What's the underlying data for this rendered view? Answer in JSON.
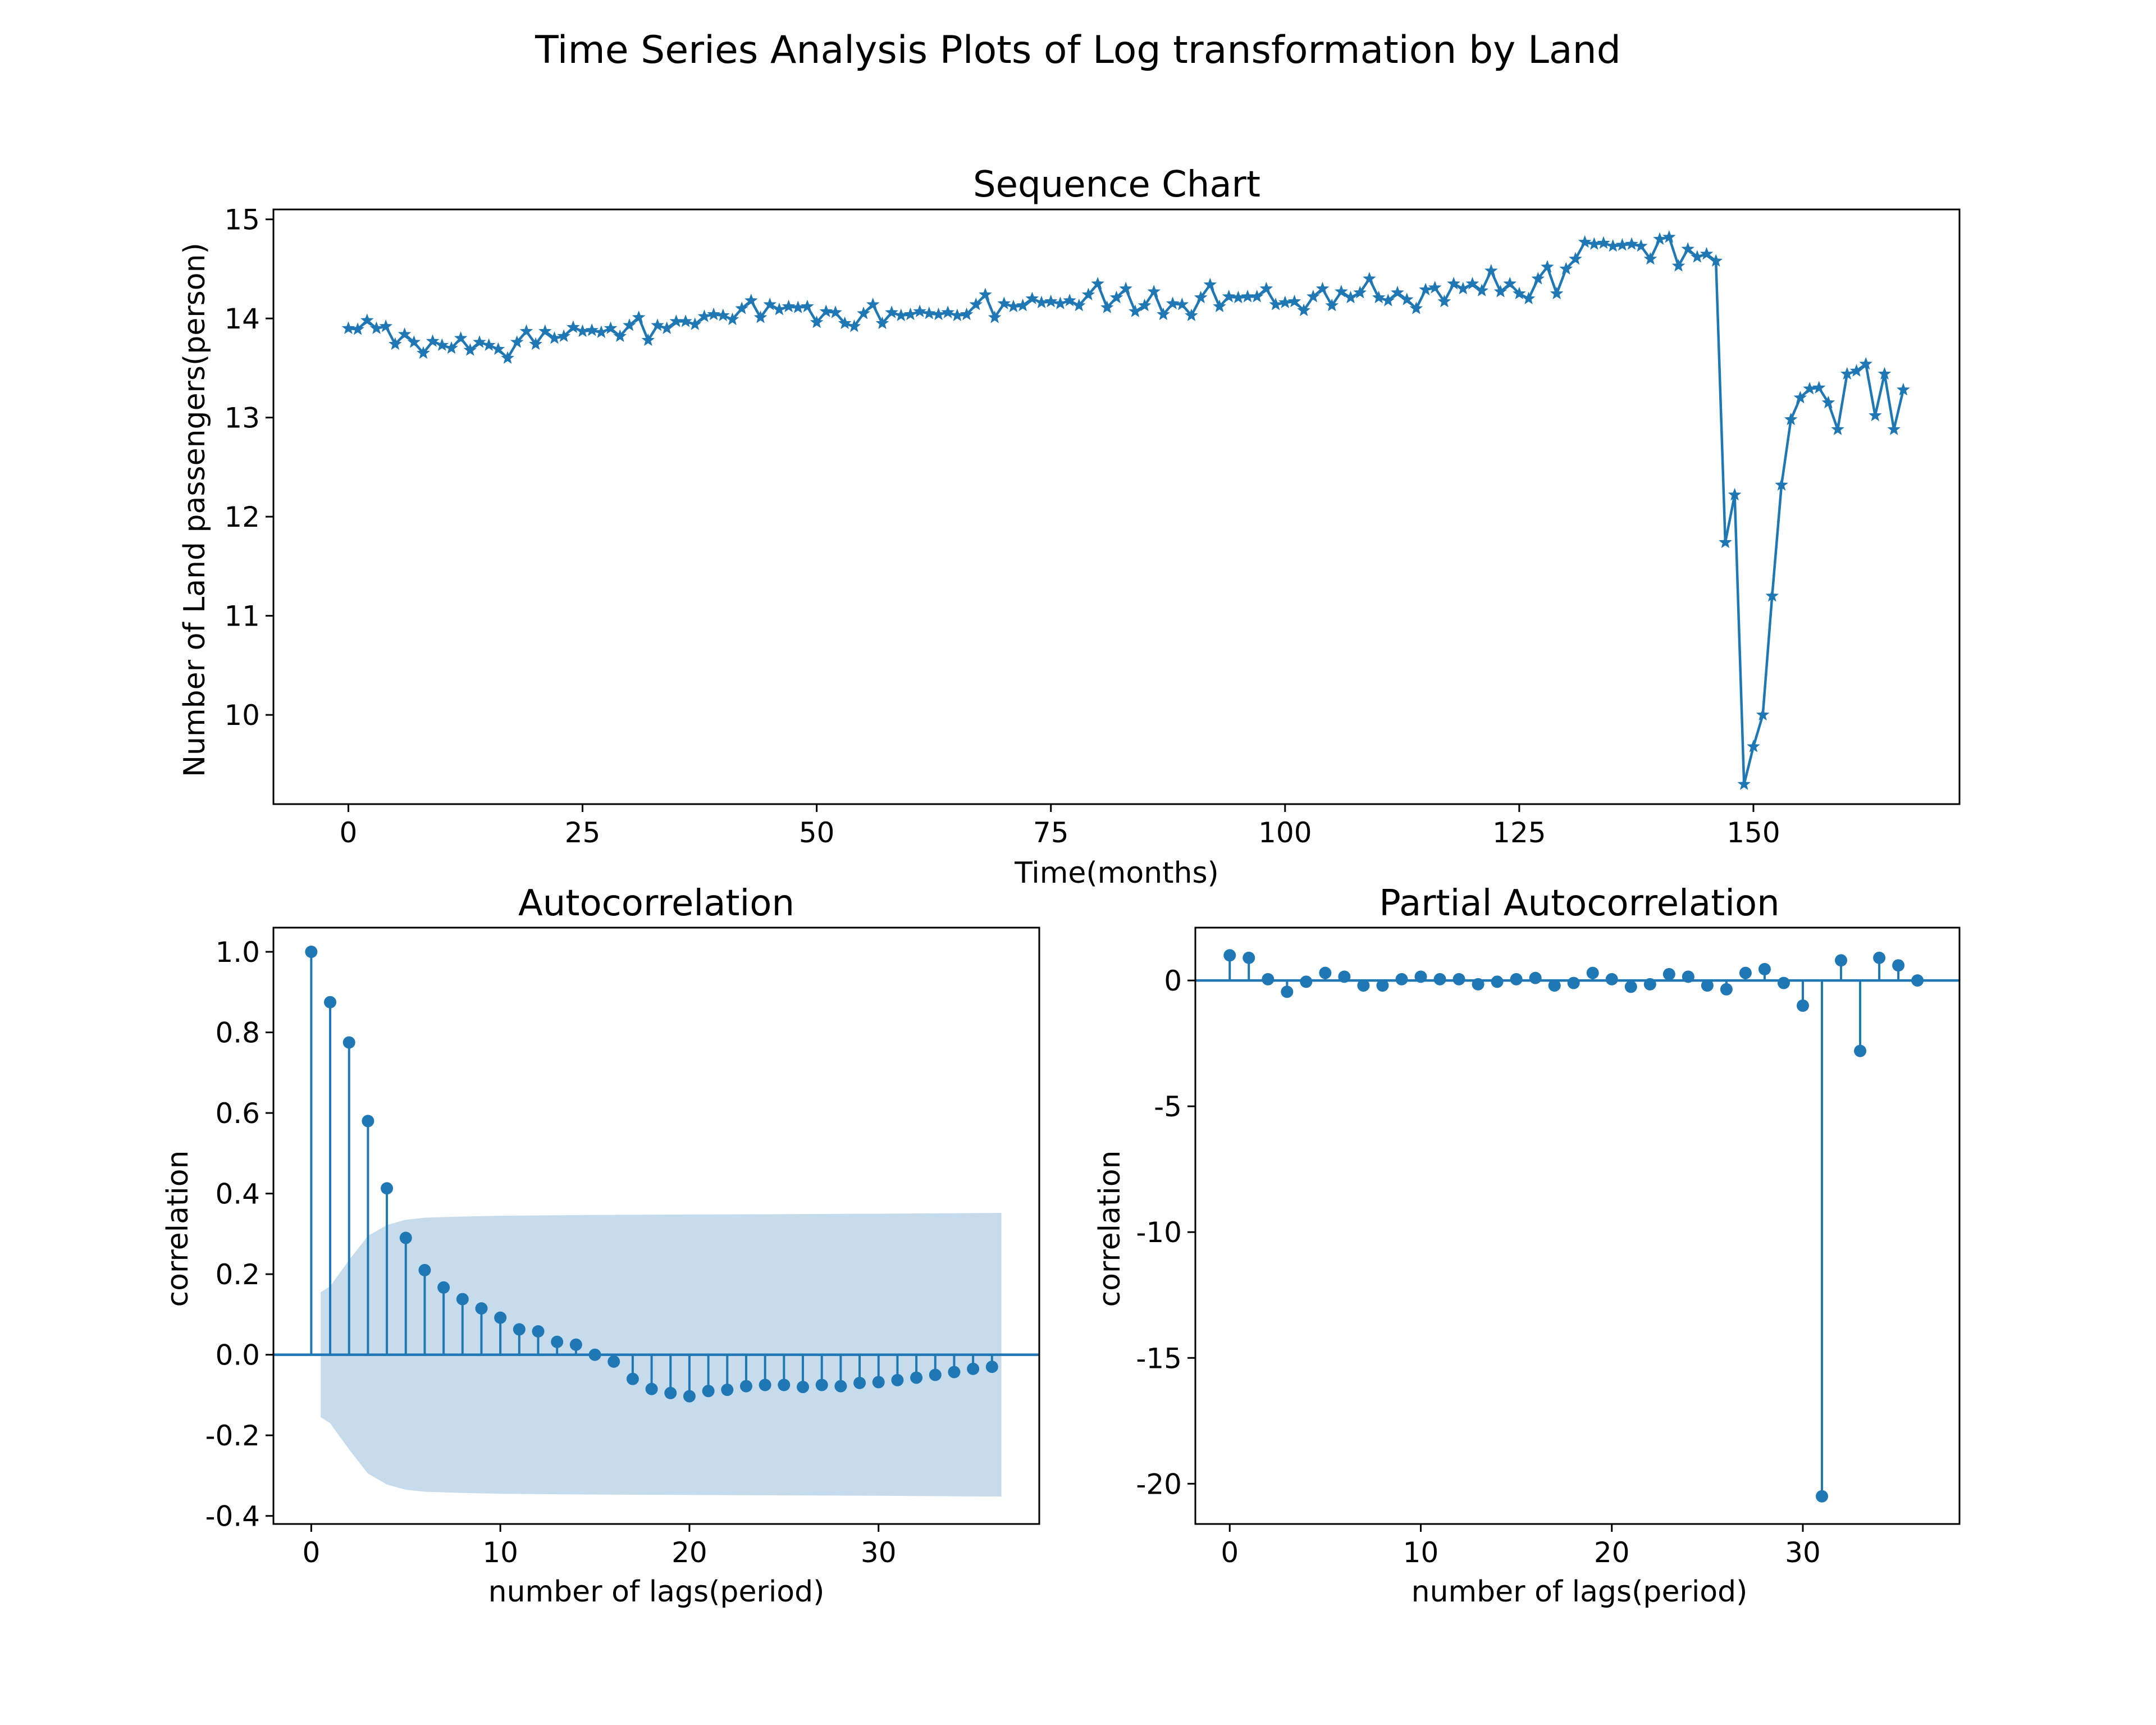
{
  "figure": {
    "suptitle": "Time Series Analysis Plots of Log transformation by Land"
  },
  "colors": {
    "series": "#1f77b4",
    "band": "#c6dcec",
    "axis": "#000000",
    "background": "#ffffff"
  },
  "chart_data": [
    {
      "type": "line",
      "title": "Sequence Chart",
      "xlabel": "Time(months)",
      "ylabel": "Number of Land passengers(person)",
      "marker": "star",
      "xlim": [
        -8,
        172
      ],
      "ylim": [
        9.1,
        15.1
      ],
      "xticks": [
        0,
        25,
        50,
        75,
        100,
        125,
        150
      ],
      "yticks": [
        10,
        11,
        12,
        13,
        14,
        15
      ],
      "x_start": 0,
      "values": [
        13.9,
        13.89,
        13.98,
        13.9,
        13.92,
        13.74,
        13.84,
        13.76,
        13.65,
        13.77,
        13.73,
        13.7,
        13.8,
        13.68,
        13.76,
        13.73,
        13.69,
        13.6,
        13.76,
        13.87,
        13.74,
        13.87,
        13.8,
        13.82,
        13.91,
        13.87,
        13.88,
        13.86,
        13.9,
        13.82,
        13.93,
        14.01,
        13.78,
        13.93,
        13.9,
        13.97,
        13.97,
        13.94,
        14.02,
        14.04,
        14.03,
        13.99,
        14.1,
        14.18,
        14.01,
        14.14,
        14.09,
        14.12,
        14.11,
        14.12,
        13.96,
        14.07,
        14.06,
        13.95,
        13.92,
        14.05,
        14.14,
        13.95,
        14.06,
        14.03,
        14.04,
        14.07,
        14.05,
        14.04,
        14.06,
        14.03,
        14.04,
        14.14,
        14.24,
        14.01,
        14.15,
        14.12,
        14.13,
        14.2,
        14.16,
        14.17,
        14.15,
        14.18,
        14.13,
        14.24,
        14.35,
        14.11,
        14.21,
        14.3,
        14.07,
        14.13,
        14.27,
        14.04,
        14.15,
        14.14,
        14.03,
        14.21,
        14.34,
        14.12,
        14.22,
        14.21,
        14.22,
        14.22,
        14.3,
        14.14,
        14.16,
        14.17,
        14.08,
        14.22,
        14.3,
        14.13,
        14.27,
        14.21,
        14.26,
        14.4,
        14.21,
        14.18,
        14.26,
        14.19,
        14.1,
        14.29,
        14.31,
        14.17,
        14.35,
        14.3,
        14.35,
        14.28,
        14.48,
        14.27,
        14.35,
        14.25,
        14.2,
        14.4,
        14.52,
        14.25,
        14.5,
        14.6,
        14.77,
        14.75,
        14.76,
        14.73,
        14.74,
        14.75,
        14.73,
        14.6,
        14.8,
        14.82,
        14.53,
        14.7,
        14.62,
        14.65,
        14.58,
        11.74,
        12.22,
        9.3,
        9.68,
        10.0,
        11.2,
        12.32,
        12.98,
        13.2,
        13.29,
        13.3,
        13.15,
        12.88,
        13.44,
        13.47,
        13.54,
        13.02,
        13.44,
        12.88,
        13.28
      ]
    },
    {
      "type": "stem",
      "title": "Autocorrelation",
      "xlabel": "number of lags(period)",
      "ylabel": "correlation",
      "xlim": [
        -2,
        38.5
      ],
      "ylim": [
        -0.42,
        1.06
      ],
      "xticks": [
        0,
        10,
        20,
        30
      ],
      "yticks": [
        -0.4,
        -0.2,
        0.0,
        0.2,
        0.4,
        0.6,
        0.8,
        1.0
      ],
      "lags": [
        0,
        1,
        2,
        3,
        4,
        5,
        6,
        7,
        8,
        9,
        10,
        11,
        12,
        13,
        14,
        15,
        16,
        17,
        18,
        19,
        20,
        21,
        22,
        23,
        24,
        25,
        26,
        27,
        28,
        29,
        30,
        31,
        32,
        33,
        34,
        35,
        36
      ],
      "values": [
        1.0,
        0.875,
        0.775,
        0.58,
        0.413,
        0.29,
        0.21,
        0.167,
        0.138,
        0.115,
        0.092,
        0.063,
        0.058,
        0.032,
        0.025,
        0.0,
        -0.017,
        -0.06,
        -0.085,
        -0.095,
        -0.103,
        -0.09,
        -0.087,
        -0.078,
        -0.075,
        -0.075,
        -0.08,
        -0.075,
        -0.078,
        -0.07,
        -0.068,
        -0.063,
        -0.057,
        -0.05,
        -0.043,
        -0.035,
        -0.03
      ],
      "confidence_band": {
        "lags": [
          0.5,
          1,
          2,
          3,
          4,
          5,
          6,
          8,
          10,
          15,
          20,
          30,
          36.5
        ],
        "upper": [
          0.155,
          0.17,
          0.235,
          0.295,
          0.322,
          0.335,
          0.34,
          0.343,
          0.345,
          0.347,
          0.348,
          0.35,
          0.352
        ]
      }
    },
    {
      "type": "stem",
      "title": "Partial Autocorrelation",
      "xlabel": "number of lags(period)",
      "ylabel": "correlation",
      "xlim": [
        -1.8,
        38.2
      ],
      "ylim": [
        -21.6,
        2.1
      ],
      "xticks": [
        0,
        10,
        20,
        30
      ],
      "yticks": [
        -20,
        -15,
        -10,
        -5,
        0
      ],
      "lags": [
        0,
        1,
        2,
        3,
        4,
        5,
        6,
        7,
        8,
        9,
        10,
        11,
        12,
        13,
        14,
        15,
        16,
        17,
        18,
        19,
        20,
        21,
        22,
        23,
        24,
        25,
        26,
        27,
        28,
        29,
        30,
        31,
        32,
        33,
        34,
        35,
        36
      ],
      "values": [
        1.0,
        0.9,
        0.05,
        -0.45,
        -0.05,
        0.3,
        0.15,
        -0.2,
        -0.2,
        0.05,
        0.15,
        0.05,
        0.05,
        -0.15,
        -0.05,
        0.05,
        0.1,
        -0.2,
        -0.1,
        0.3,
        0.05,
        -0.25,
        -0.15,
        0.25,
        0.15,
        -0.2,
        -0.35,
        0.3,
        0.45,
        -0.1,
        -1.0,
        -20.5,
        0.8,
        -2.8,
        0.9,
        0.6,
        0.0
      ]
    }
  ]
}
